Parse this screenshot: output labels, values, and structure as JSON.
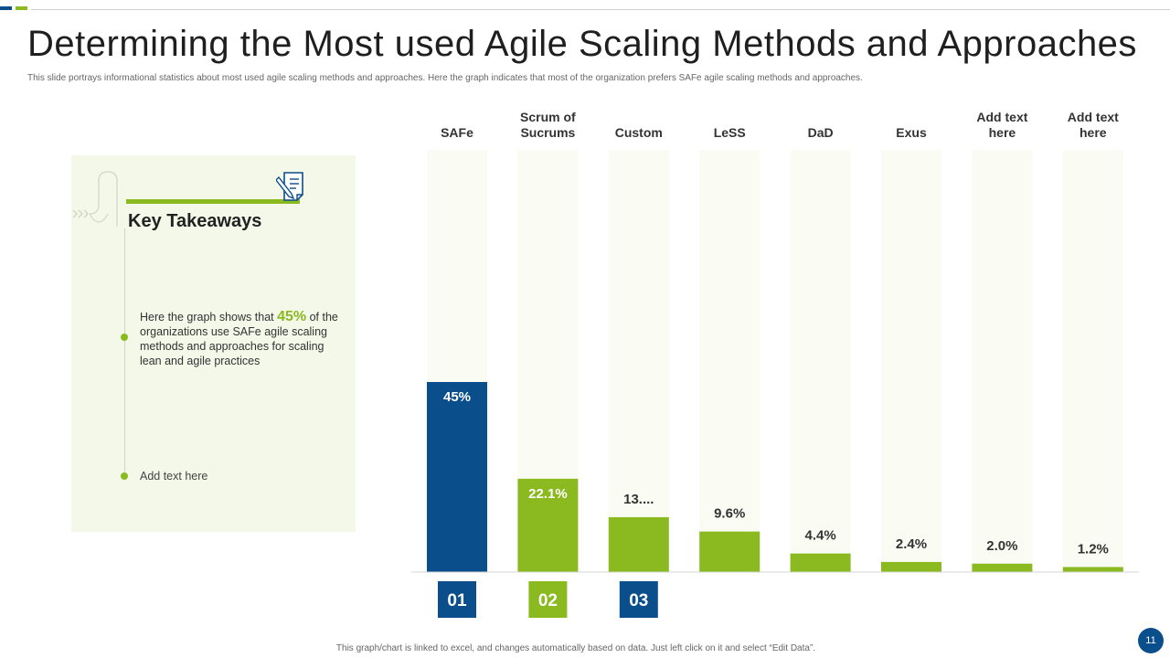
{
  "slide": {
    "title": "Determining the Most used Agile Scaling Methods and Approaches",
    "subtitle": "This slide portrays informational statistics about most used agile scaling methods and approaches. Here the graph indicates that most of the organization prefers SAFe agile scaling methods and approaches.",
    "footer_note": "This graph/chart is linked to excel, and changes automatically based on data. Just left click on it and select “Edit Data”.",
    "page_number": "11"
  },
  "takeaways": {
    "heading": "Key Takeaways",
    "item1_prefix": "Here the graph  shows that ",
    "item1_highlight": "45%",
    "item1_suffix": " of the organizations use SAFe agile scaling methods and approaches for scaling lean and agile practices",
    "item2": "Add text here"
  },
  "colors": {
    "blue": "#0b4e8c",
    "green": "#8ab920",
    "track": "#fafcf3",
    "panel": "#f3f8e8"
  },
  "chart_data": {
    "type": "bar",
    "categories": [
      "SAFe",
      "Scrum of Sucrums",
      "Custom",
      "LeSS",
      "DaD",
      "Exus",
      "Add text here",
      "Add text here"
    ],
    "values": [
      45,
      22.1,
      13,
      9.6,
      4.4,
      2.4,
      2.0,
      1.2
    ],
    "data_labels": [
      "45%",
      "22.1%",
      "13....",
      "9.6%",
      "4.4%",
      "2.4%",
      "2.0%",
      "1.2%"
    ],
    "bar_colors": [
      "#0b4e8c",
      "#8ab920",
      "#8ab920",
      "#8ab920",
      "#8ab920",
      "#8ab920",
      "#8ab920",
      "#8ab920"
    ],
    "rank_badges": [
      {
        "label": "01",
        "color": "#0b4e8c"
      },
      {
        "label": "02",
        "color": "#8ab920"
      },
      {
        "label": "03",
        "color": "#0b4e8c"
      }
    ],
    "ylim": [
      0,
      100
    ],
    "title": "",
    "xlabel": "",
    "ylabel": ""
  }
}
